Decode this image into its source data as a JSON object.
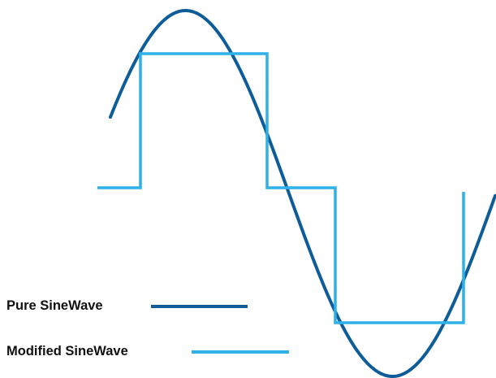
{
  "legend": {
    "pure_label": "Pure SineWave",
    "modified_label": "Modified SineWave"
  },
  "colors": {
    "pure": "#0e5d99",
    "modified": "#2eb1e8",
    "background": "#ffffff",
    "text": "#111111"
  }
}
